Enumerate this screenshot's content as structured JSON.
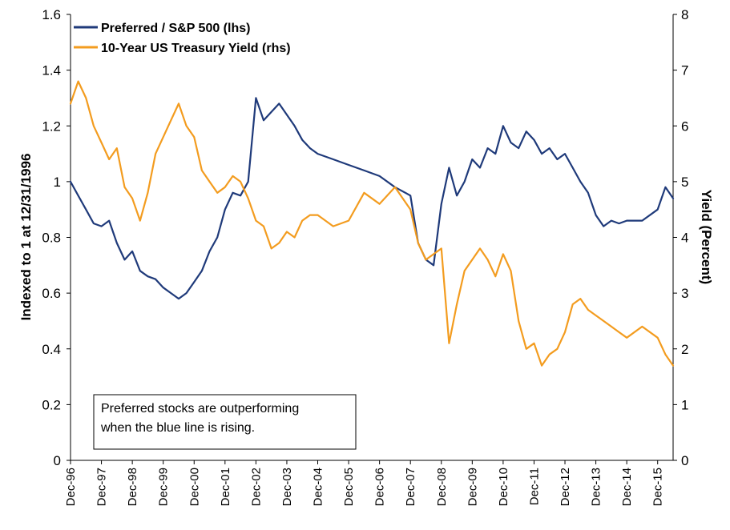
{
  "chart_data": {
    "type": "line",
    "x_tick_labels": [
      "Dec-96",
      "Dec-97",
      "Dec-98",
      "Dec-99",
      "Dec-00",
      "Dec-01",
      "Dec-02",
      "Dec-03",
      "Dec-04",
      "Dec-05",
      "Dec-06",
      "Dec-07",
      "Dec-08",
      "Dec-09",
      "Dec-10",
      "Dec-11",
      "Dec-12",
      "Dec-13",
      "Dec-14",
      "Dec-15"
    ],
    "x_range": [
      1996.0,
      2015.5
    ],
    "y_left": {
      "label": "Indexed to 1 at 12/31/1996",
      "range": [
        0,
        1.6
      ],
      "ticks": [
        "0",
        "0.2",
        "0.4",
        "0.6",
        "0.8",
        "1",
        "1.2",
        "1.4",
        "1.6"
      ]
    },
    "y_right": {
      "label": "Yield (Percent)",
      "range": [
        0,
        8
      ],
      "ticks": [
        "0",
        "1",
        "2",
        "3",
        "4",
        "5",
        "6",
        "7",
        "8"
      ]
    },
    "legend_position": "top-left",
    "grid": false,
    "series": [
      {
        "name": "Preferred / S&P 500 (lhs)",
        "axis": "left",
        "color": "#1F3A7A",
        "x": [
          1996.0,
          1996.25,
          1996.5,
          1996.75,
          1997.0,
          1997.25,
          1997.5,
          1997.75,
          1998.0,
          1998.25,
          1998.5,
          1998.75,
          1999.0,
          1999.25,
          1999.5,
          1999.75,
          2000.0,
          2000.25,
          2000.5,
          2000.75,
          2001.0,
          2001.25,
          2001.5,
          2001.75,
          2002.0,
          2002.25,
          2002.5,
          2002.75,
          2003.0,
          2003.25,
          2003.5,
          2003.75,
          2004.0,
          2004.5,
          2005.0,
          2005.5,
          2006.0,
          2006.5,
          2007.0,
          2007.25,
          2007.5,
          2007.75,
          2008.0,
          2008.25,
          2008.5,
          2008.75,
          2009.0,
          2009.25,
          2009.5,
          2009.75,
          2010.0,
          2010.25,
          2010.5,
          2010.75,
          2011.0,
          2011.25,
          2011.5,
          2011.75,
          2012.0,
          2012.25,
          2012.5,
          2012.75,
          2013.0,
          2013.25,
          2013.5,
          2013.75,
          2014.0,
          2014.5,
          2015.0,
          2015.25,
          2015.5
        ],
        "values": [
          1.0,
          0.95,
          0.9,
          0.85,
          0.84,
          0.86,
          0.78,
          0.72,
          0.75,
          0.68,
          0.66,
          0.65,
          0.62,
          0.6,
          0.58,
          0.6,
          0.64,
          0.68,
          0.75,
          0.8,
          0.9,
          0.96,
          0.95,
          1.0,
          1.3,
          1.22,
          1.25,
          1.28,
          1.24,
          1.2,
          1.15,
          1.12,
          1.1,
          1.08,
          1.06,
          1.04,
          1.02,
          0.98,
          0.95,
          0.78,
          0.72,
          0.7,
          0.92,
          1.05,
          0.95,
          1.0,
          1.08,
          1.05,
          1.12,
          1.1,
          1.2,
          1.14,
          1.12,
          1.18,
          1.15,
          1.1,
          1.12,
          1.08,
          1.1,
          1.05,
          1.0,
          0.96,
          0.88,
          0.84,
          0.86,
          0.85,
          0.86,
          0.86,
          0.9,
          0.98,
          0.94
        ]
      },
      {
        "name": "10-Year US Treasury Yield (rhs)",
        "axis": "right",
        "color": "#F39C1F",
        "x": [
          1996.0,
          1996.25,
          1996.5,
          1996.75,
          1997.0,
          1997.25,
          1997.5,
          1997.75,
          1998.0,
          1998.25,
          1998.5,
          1998.75,
          1999.0,
          1999.25,
          1999.5,
          1999.75,
          2000.0,
          2000.25,
          2000.5,
          2000.75,
          2001.0,
          2001.25,
          2001.5,
          2001.75,
          2002.0,
          2002.25,
          2002.5,
          2002.75,
          2003.0,
          2003.25,
          2003.5,
          2003.75,
          2004.0,
          2004.5,
          2005.0,
          2005.5,
          2006.0,
          2006.5,
          2007.0,
          2007.25,
          2007.5,
          2007.75,
          2008.0,
          2008.25,
          2008.5,
          2008.75,
          2009.0,
          2009.25,
          2009.5,
          2009.75,
          2010.0,
          2010.25,
          2010.5,
          2010.75,
          2011.0,
          2011.25,
          2011.5,
          2011.75,
          2012.0,
          2012.25,
          2012.5,
          2012.75,
          2013.0,
          2013.25,
          2013.5,
          2013.75,
          2014.0,
          2014.5,
          2015.0,
          2015.25,
          2015.5
        ],
        "values": [
          6.4,
          6.8,
          6.5,
          6.0,
          5.7,
          5.4,
          5.6,
          4.9,
          4.7,
          4.3,
          4.8,
          5.5,
          5.8,
          6.1,
          6.4,
          6.0,
          5.8,
          5.2,
          5.0,
          4.8,
          4.9,
          5.1,
          5.0,
          4.7,
          4.3,
          4.2,
          3.8,
          3.9,
          4.1,
          4.0,
          4.3,
          4.4,
          4.4,
          4.2,
          4.3,
          4.8,
          4.6,
          4.9,
          4.5,
          3.9,
          3.6,
          3.7,
          3.8,
          2.1,
          2.8,
          3.4,
          3.6,
          3.8,
          3.6,
          3.3,
          3.7,
          3.4,
          2.5,
          2.0,
          2.1,
          1.7,
          1.9,
          2.0,
          2.3,
          2.8,
          2.9,
          2.7,
          2.6,
          2.5,
          2.4,
          2.3,
          2.2,
          2.4,
          2.2,
          1.9,
          1.7
        ]
      }
    ],
    "annotation": "Preferred stocks are outperforming when the blue line is rising."
  },
  "annotation_lines": [
    "Preferred stocks are outperforming",
    "when the blue line is rising."
  ]
}
